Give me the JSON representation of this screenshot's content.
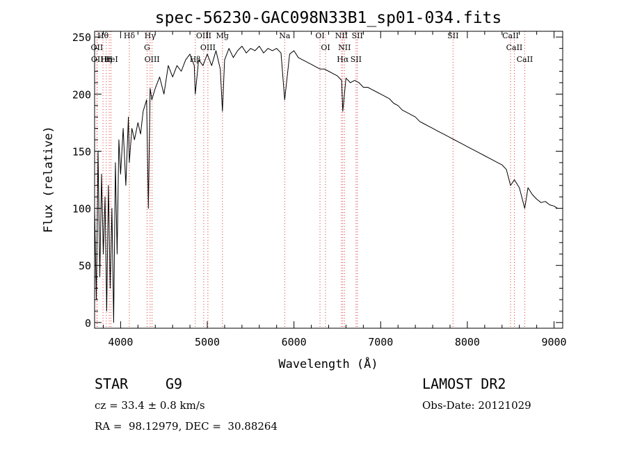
{
  "chart_data": {
    "type": "line",
    "title": "spec-56230-GAC098N33B1_sp01-034.fits",
    "xlabel": "Wavelength (Å)",
    "ylabel": "Flux (relative)",
    "xlim": [
      3700,
      9100
    ],
    "ylim": [
      -5,
      255
    ],
    "xticks": [
      4000,
      5000,
      6000,
      7000,
      8000,
      9000
    ],
    "yticks": [
      0,
      50,
      100,
      150,
      200,
      250
    ],
    "grid": false,
    "series": [
      {
        "color": "#000000",
        "x": [
          3700,
          3720,
          3740,
          3760,
          3780,
          3800,
          3820,
          3840,
          3860,
          3880,
          3900,
          3920,
          3940,
          3960,
          3980,
          4000,
          4030,
          4060,
          4090,
          4100,
          4130,
          4160,
          4200,
          4230,
          4260,
          4300,
          4320,
          4340,
          4360,
          4380,
          4400,
          4450,
          4500,
          4550,
          4600,
          4650,
          4700,
          4750,
          4800,
          4850,
          4861,
          4900,
          4950,
          5000,
          5050,
          5100,
          5150,
          5175,
          5200,
          5250,
          5300,
          5350,
          5400,
          5450,
          5500,
          5550,
          5600,
          5650,
          5700,
          5750,
          5800,
          5850,
          5893,
          5950,
          6000,
          6050,
          6100,
          6150,
          6200,
          6250,
          6300,
          6350,
          6400,
          6450,
          6500,
          6550,
          6563,
          6600,
          6650,
          6700,
          6750,
          6800,
          6850,
          6900,
          6950,
          7000,
          7050,
          7100,
          7150,
          7200,
          7250,
          7300,
          7350,
          7400,
          7450,
          7500,
          7550,
          7600,
          7650,
          7700,
          7750,
          7800,
          7850,
          7900,
          7950,
          8000,
          8050,
          8100,
          8150,
          8200,
          8250,
          8300,
          8350,
          8400,
          8450,
          8498,
          8542,
          8600,
          8662,
          8700,
          8750,
          8800,
          8850,
          8900,
          8950,
          9000,
          9040
        ],
        "values": [
          100,
          20,
          150,
          40,
          130,
          60,
          110,
          10,
          120,
          30,
          100,
          0,
          140,
          60,
          160,
          130,
          170,
          120,
          180,
          140,
          170,
          160,
          175,
          165,
          185,
          195,
          100,
          205,
          195,
          200,
          205,
          215,
          200,
          225,
          215,
          225,
          220,
          230,
          235,
          225,
          200,
          230,
          225,
          235,
          225,
          238,
          222,
          185,
          230,
          240,
          232,
          238,
          242,
          236,
          240,
          238,
          242,
          236,
          240,
          238,
          240,
          236,
          195,
          235,
          238,
          232,
          230,
          228,
          226,
          224,
          222,
          222,
          220,
          218,
          216,
          212,
          185,
          214,
          210,
          212,
          210,
          206,
          206,
          204,
          202,
          200,
          198,
          196,
          192,
          190,
          186,
          184,
          182,
          180,
          176,
          174,
          172,
          170,
          168,
          166,
          164,
          162,
          160,
          158,
          156,
          154,
          152,
          150,
          148,
          146,
          144,
          142,
          140,
          138,
          134,
          120,
          125,
          118,
          100,
          118,
          112,
          108,
          105,
          106,
          103,
          102,
          100
        ]
      }
    ],
    "lines": [
      {
        "label": "Hθ",
        "x": 3797
      },
      {
        "label": "OII",
        "x": 3727
      },
      {
        "label": "OII",
        "x": 3730
      },
      {
        "label": "Hη",
        "x": 3835
      },
      {
        "label": "H",
        "x": 3869
      },
      {
        "label": "HeI",
        "x": 3889
      },
      {
        "label": "Hδ",
        "x": 4101
      },
      {
        "label": "Hγ",
        "x": 4340
      },
      {
        "label": "G",
        "x": 4305
      },
      {
        "label": "OIII",
        "x": 4363
      },
      {
        "label": "OIII",
        "x": 4959
      },
      {
        "label": "OIII",
        "x": 5007
      },
      {
        "label": "Hβ",
        "x": 4861
      },
      {
        "label": "Mg",
        "x": 5175
      },
      {
        "label": "Na",
        "x": 5893
      },
      {
        "label": "OI",
        "x": 6300
      },
      {
        "label": "OI",
        "x": 6364
      },
      {
        "label": "NII",
        "x": 6548
      },
      {
        "label": "NII",
        "x": 6583
      },
      {
        "label": "Hα",
        "x": 6563
      },
      {
        "label": "SII",
        "x": 6716
      },
      {
        "label": "SII",
        "x": 6731
      },
      {
        "label": "SII",
        "x": 7835
      },
      {
        "label": "CaII",
        "x": 8498
      },
      {
        "label": "CaII",
        "x": 8542
      },
      {
        "label": "CaII",
        "x": 8662
      }
    ]
  },
  "info": {
    "object_type": "STAR",
    "subclass": "G9",
    "survey": "LAMOST DR2",
    "redshift": "cz = 33.4 ± 0.8 km/s",
    "obs_date": "Obs-Date: 20121029",
    "coords": "RA =  98.12979, DEC =  30.88264"
  }
}
